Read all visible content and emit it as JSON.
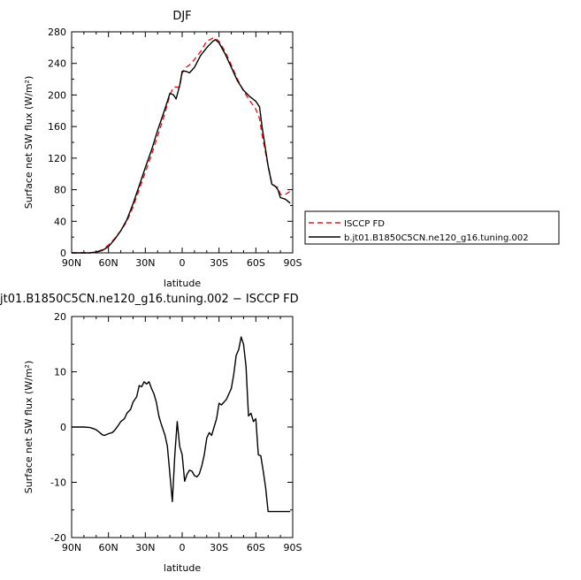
{
  "chart_data": [
    {
      "type": "line",
      "title": "DJF",
      "xlabel": "latitude",
      "ylabel": "Surface net SW flux (W/m²)",
      "x_ticks": [
        "90N",
        "60N",
        "30N",
        "0",
        "30S",
        "60S",
        "90S"
      ],
      "x_tick_values": [
        90,
        60,
        30,
        0,
        -30,
        -60,
        -90
      ],
      "xlim": [
        90,
        -90
      ],
      "ylim": [
        0,
        280
      ],
      "y_ticks": [
        0,
        40,
        80,
        120,
        160,
        200,
        240,
        280
      ],
      "legend_location": "right",
      "series": [
        {
          "name": "ISCCP FD",
          "color": "#e41a1c",
          "dash": "dashed",
          "x": [
            90,
            80,
            75,
            70,
            65,
            60,
            55,
            50,
            45,
            40,
            35,
            30,
            25,
            20,
            15,
            12,
            10,
            7,
            5,
            2,
            0,
            -3,
            -6,
            -10,
            -15,
            -20,
            -25,
            -27,
            -30,
            -35,
            -40,
            -45,
            -50,
            -55,
            -60,
            -63,
            -65,
            -70,
            -73,
            -76,
            -78,
            -80,
            -84,
            -88
          ],
          "y": [
            0,
            0,
            0,
            1,
            4,
            10,
            18,
            28,
            40,
            58,
            80,
            102,
            124,
            148,
            172,
            188,
            200,
            210,
            210,
            210,
            228,
            235,
            238,
            245,
            255,
            268,
            272,
            272,
            268,
            255,
            238,
            220,
            205,
            193,
            182,
            170,
            150,
            110,
            88,
            84,
            83,
            74,
            74,
            78
          ]
        },
        {
          "name": "b.jt01.B1850C5CN.ne120_g16.tuning.002",
          "color": "#000000",
          "dash": "solid",
          "x": [
            90,
            80,
            75,
            70,
            65,
            60,
            55,
            50,
            45,
            40,
            35,
            30,
            25,
            20,
            15,
            12,
            10,
            7,
            5,
            2,
            0,
            -3,
            -6,
            -10,
            -15,
            -20,
            -25,
            -27,
            -30,
            -35,
            -40,
            -45,
            -50,
            -55,
            -60,
            -63,
            -65,
            -70,
            -73,
            -76,
            -78,
            -80,
            -84,
            -88
          ],
          "y": [
            0,
            0,
            0,
            1,
            3,
            8,
            17,
            28,
            42,
            62,
            85,
            108,
            130,
            155,
            178,
            192,
            202,
            200,
            195,
            212,
            230,
            230,
            228,
            235,
            250,
            260,
            268,
            270,
            266,
            252,
            235,
            218,
            206,
            198,
            192,
            185,
            160,
            110,
            87,
            84,
            80,
            70,
            68,
            63
          ]
        }
      ]
    },
    {
      "type": "line",
      "title": "jt01.B1850C5CN.ne120_g16.tuning.002 − ISCCP FD",
      "xlabel": "latitude",
      "ylabel": "Surface net SW flux (W/m²)",
      "x_ticks": [
        "90N",
        "60N",
        "30N",
        "0",
        "30S",
        "60S",
        "90S"
      ],
      "x_tick_values": [
        90,
        60,
        30,
        0,
        -30,
        -60,
        -90
      ],
      "xlim": [
        90,
        -90
      ],
      "ylim": [
        -20,
        20
      ],
      "y_ticks": [
        -20,
        -10,
        0,
        10,
        20
      ],
      "series": [
        {
          "name": "",
          "color": "#000000",
          "dash": "solid",
          "x": [
            90,
            80,
            75,
            72,
            70,
            67,
            65,
            63,
            60,
            57,
            55,
            52,
            50,
            47,
            45,
            42,
            40,
            37,
            35,
            33,
            31,
            29,
            27,
            25,
            23,
            21,
            19,
            17,
            14,
            12,
            10,
            8,
            6,
            4,
            2,
            0,
            -2,
            -4,
            -6,
            -8,
            -10,
            -12,
            -14,
            -16,
            -18,
            -20,
            -22,
            -24,
            -26,
            -28,
            -30,
            -32,
            -34,
            -36,
            -38,
            -40,
            -42,
            -44,
            -46,
            -48,
            -50,
            -52,
            -54,
            -56,
            -58,
            -60,
            -62,
            -64,
            -66,
            -68,
            -70,
            -72,
            -74,
            -76,
            -78,
            -80,
            -82,
            -84,
            -86,
            -88
          ],
          "y": [
            0,
            0,
            -0.1,
            -0.3,
            -0.5,
            -1.0,
            -1.4,
            -1.5,
            -1.2,
            -1.0,
            -0.6,
            0.3,
            1.0,
            1.5,
            2.5,
            3.2,
            4.5,
            5.5,
            7.5,
            7.3,
            8.2,
            7.8,
            8.2,
            7.0,
            6.0,
            4.5,
            2.0,
            0.5,
            -1.5,
            -3.5,
            -8.5,
            -13.5,
            -5.0,
            1.0,
            -3.5,
            -5.0,
            -9.8,
            -8.5,
            -7.8,
            -8.0,
            -8.8,
            -9.0,
            -8.5,
            -7.0,
            -5.0,
            -2.0,
            -1.0,
            -1.5,
            0.0,
            1.5,
            4.3,
            4.0,
            4.5,
            5.0,
            6.0,
            7.0,
            9.5,
            13.0,
            14.0,
            16.3,
            15.0,
            11.0,
            2.0,
            2.5,
            1.0,
            1.5,
            -5.0,
            -5.2,
            -8.0,
            -11.0,
            -15.3,
            -15.3,
            -15.3,
            -15.3,
            -15.3,
            -15.3,
            -15.3,
            -15.3,
            -15.3,
            -15.3
          ]
        }
      ]
    }
  ]
}
